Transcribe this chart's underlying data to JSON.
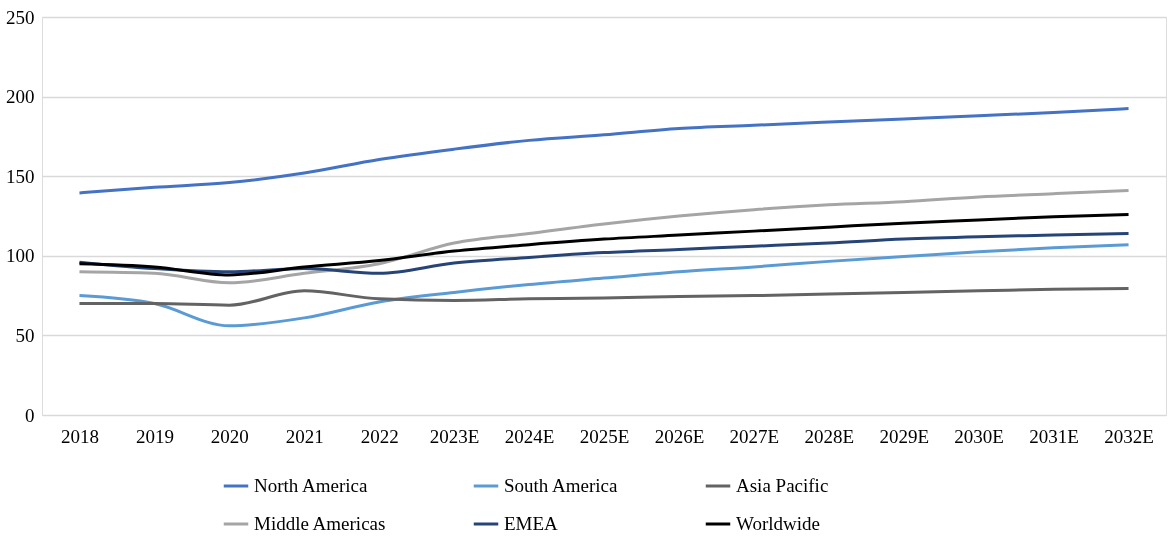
{
  "chart_data": {
    "type": "line",
    "categories": [
      "2018",
      "2019",
      "2020",
      "2021",
      "2022",
      "2023E",
      "2024E",
      "2025E",
      "2026E",
      "2027E",
      "2028E",
      "2029E",
      "2030E",
      "2031E",
      "2032E"
    ],
    "series": [
      {
        "name": "North America",
        "color": "#4472c4",
        "values": [
          139.5,
          143,
          146,
          152,
          160.5,
          167,
          172.5,
          176,
          180,
          182,
          184,
          186,
          188,
          190,
          192.5
        ]
      },
      {
        "name": "Middle Americas",
        "color": "#a5a5a5",
        "values": [
          90,
          89,
          83,
          89,
          95,
          108,
          114,
          120,
          125,
          129,
          132,
          134,
          137,
          139,
          141
        ]
      },
      {
        "name": "South America",
        "color": "#5b9bd5",
        "values": [
          75,
          70,
          56,
          61,
          71,
          77,
          82,
          86,
          90,
          93,
          96.5,
          99.5,
          102.5,
          105,
          107
        ]
      },
      {
        "name": "EMEA",
        "color": "#264478",
        "values": [
          96,
          92,
          90,
          92,
          89,
          95.5,
          99,
          102,
          104,
          106,
          108,
          110.5,
          112,
          113,
          114
        ]
      },
      {
        "name": "Asia Pacific",
        "color": "#636363",
        "values": [
          70,
          70,
          69,
          78,
          73,
          72,
          73,
          73.5,
          74.5,
          75,
          76,
          77,
          78,
          79,
          79.5
        ]
      },
      {
        "name": "Worldwide",
        "color": "#000000",
        "values": [
          95,
          93,
          88,
          93,
          97,
          103,
          107,
          110.5,
          113,
          115.5,
          118,
          120.5,
          122.5,
          124.5,
          126
        ]
      }
    ],
    "ylim": [
      0,
      250
    ],
    "yticks": [
      0,
      50,
      100,
      150,
      200,
      250
    ],
    "grid": "y",
    "legend": "bottom",
    "marker": "none",
    "line_style": "solid"
  }
}
